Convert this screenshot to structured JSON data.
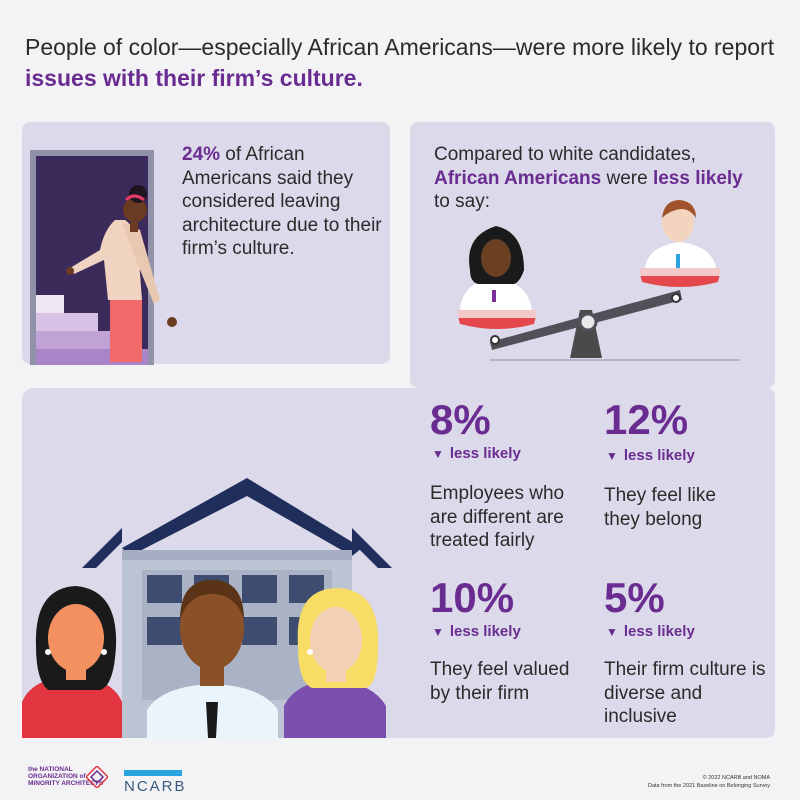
{
  "headline": {
    "prefix": "People of color—especially African Americans—were more likely to report ",
    "accent": "issues with their firm’s culture."
  },
  "left_stat": {
    "pct": "24%",
    "text": " of African Americans said they considered leaving architecture due to their firm’s culture."
  },
  "comparison": {
    "intro": "Compared to white candidates,",
    "group": "African Americans",
    "mid": " were ",
    "less": "less likely",
    "end": " to say:"
  },
  "stats": [
    {
      "pct": "8%",
      "less": "less likely",
      "desc": "Employees who are different are treated fairly"
    },
    {
      "pct": "12%",
      "less": "less likely",
      "desc": "They feel like they belong"
    },
    {
      "pct": "10%",
      "less": "less likely",
      "desc": "They feel valued by their firm"
    },
    {
      "pct": "5%",
      "less": "less likely",
      "desc": "Their firm culture is diverse and inclusive"
    }
  ],
  "footer": {
    "noma_logo_text": "the NATIONAL ORGANIZATION of MINORITY ARCHITECTS",
    "ncarb_logo_text": "NCARB",
    "copyright": "© 2022 NCARB and NOMA",
    "source": "Data from the 2021 Baseline on Belonging Survey"
  },
  "colors": {
    "accent": "#6a2c91",
    "panel": "#dcdaea",
    "background": "#f3f3f5"
  }
}
